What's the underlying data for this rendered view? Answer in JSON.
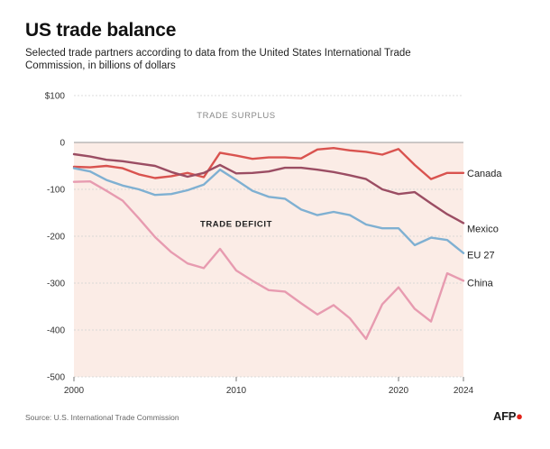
{
  "title": "US trade balance",
  "subtitle": "Selected trade partners according to data from the United States International Trade Commission, in billions of dollars",
  "source": "Source: U.S. International Trade Commission",
  "brand": "AFP",
  "chart_data": {
    "type": "line",
    "x": [
      2000,
      2001,
      2002,
      2003,
      2004,
      2005,
      2006,
      2007,
      2008,
      2009,
      2010,
      2011,
      2012,
      2013,
      2014,
      2015,
      2016,
      2017,
      2018,
      2019,
      2020,
      2021,
      2022,
      2023,
      2024
    ],
    "ylim": [
      -500,
      100
    ],
    "xlim": [
      2000,
      2024
    ],
    "yticks": [
      100,
      0,
      -100,
      -200,
      -300,
      -400,
      -500
    ],
    "ytick_labels": [
      "$100",
      "0",
      "-100",
      "-200",
      "-300",
      "-400",
      "-500"
    ],
    "xticks": [
      2000,
      2010,
      2020,
      2024
    ],
    "xtick_labels": [
      "2000",
      "2010",
      "2020",
      "2024"
    ],
    "annotations": [
      {
        "text": "TRADE SURPLUS",
        "x": 2010,
        "y": 52
      },
      {
        "text": "TRADE DEFICIT",
        "x": 2010,
        "y": -180
      }
    ],
    "series": [
      {
        "name": "Canada",
        "color": "#d9534f",
        "values": [
          -52,
          -53,
          -50,
          -55,
          -68,
          -76,
          -72,
          -65,
          -74,
          -22,
          -28,
          -35,
          -32,
          -32,
          -34,
          -15,
          -12,
          -17,
          -20,
          -26,
          -14,
          -48,
          -78,
          -65,
          -65
        ]
      },
      {
        "name": "Mexico",
        "color": "#9b4d63",
        "values": [
          -25,
          -30,
          -37,
          -40,
          -45,
          -50,
          -63,
          -73,
          -65,
          -48,
          -66,
          -65,
          -62,
          -54,
          -54,
          -58,
          -63,
          -70,
          -78,
          -100,
          -110,
          -106,
          -130,
          -153,
          -172
        ]
      },
      {
        "name": "EU 27",
        "color": "#7fb0d2",
        "values": [
          -55,
          -62,
          -80,
          -92,
          -100,
          -112,
          -110,
          -102,
          -90,
          -58,
          -80,
          -103,
          -116,
          -120,
          -143,
          -155,
          -148,
          -155,
          -175,
          -183,
          -183,
          -219,
          -203,
          -208,
          -236
        ]
      },
      {
        "name": "China",
        "color": "#e79bb0",
        "values": [
          -84,
          -83,
          -103,
          -124,
          -162,
          -202,
          -234,
          -258,
          -268,
          -227,
          -273,
          -295,
          -315,
          -318,
          -343,
          -367,
          -347,
          -375,
          -419,
          -345,
          -309,
          -355,
          -382,
          -279,
          -295
        ]
      }
    ]
  }
}
